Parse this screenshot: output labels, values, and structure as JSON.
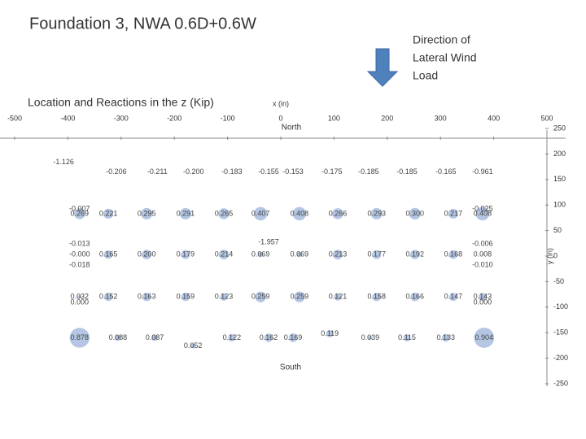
{
  "chart_data": {
    "type": "bubble",
    "title": "Foundation 3, NWA 0.6D+0.6W",
    "subtitle": "Location and Reactions in the z (Kip)",
    "annotations": {
      "wind": [
        "Direction of",
        "Lateral Wind",
        "Load"
      ],
      "north": "North",
      "south": "South"
    },
    "xlabel": "x (in)",
    "ylabel": "y (in)",
    "xlim": [
      -500,
      500
    ],
    "xticks": [
      -500,
      -400,
      -300,
      -200,
      -100,
      0,
      100,
      200,
      300,
      400,
      500
    ],
    "ylim": [
      -250,
      250
    ],
    "yticks": [
      -250,
      -200,
      -150,
      -100,
      -50,
      0,
      50,
      100,
      150,
      200,
      250
    ],
    "series": [
      {
        "name": "Reactions",
        "color": "#9bb3d9",
        "x": [
          -408,
          -309,
          -232,
          -164,
          -92,
          -23,
          23,
          96,
          165,
          237,
          310,
          379,
          -378,
          -324,
          -252,
          -179,
          -107,
          -38,
          35,
          107,
          180,
          252,
          324,
          379,
          -378,
          379,
          -378,
          -378,
          -378,
          -324,
          -252,
          -179,
          -107,
          -23,
          -38,
          35,
          107,
          180,
          252,
          324,
          379,
          379,
          379,
          -378,
          -378,
          -324,
          -252,
          -179,
          -107,
          -38,
          35,
          107,
          180,
          252,
          324,
          379,
          379,
          -378,
          -306,
          -237,
          -165,
          -92,
          -23,
          23,
          92,
          168,
          237,
          310,
          382
        ],
        "y": [
          184,
          165,
          165,
          165,
          165,
          165,
          165,
          165,
          165,
          165,
          165,
          165,
          83,
          83,
          83,
          83,
          83,
          83,
          83,
          83,
          83,
          83,
          83,
          83,
          92,
          92,
          24,
          3,
          -18,
          3,
          3,
          3,
          3,
          27,
          3,
          3,
          3,
          3,
          3,
          3,
          24,
          3,
          -18,
          -80,
          -91,
          -80,
          -80,
          -80,
          -80,
          -80,
          -80,
          -80,
          -80,
          -80,
          -80,
          -80,
          -91,
          -160,
          -160,
          -160,
          -176,
          -160,
          -160,
          -160,
          -152,
          -160,
          -160,
          -160,
          -160
        ],
        "values": [
          -1.126,
          -0.206,
          -0.211,
          -0.2,
          -0.183,
          -0.155,
          -0.153,
          -0.175,
          -0.185,
          -0.185,
          -0.165,
          -0.961,
          0.269,
          0.221,
          0.295,
          0.291,
          0.265,
          0.407,
          0.408,
          0.266,
          0.293,
          0.3,
          0.217,
          0.408,
          -0.007,
          -0.025,
          -0.013,
          0.0,
          -0.018,
          0.165,
          0.2,
          0.179,
          0.214,
          -1.957,
          0.069,
          0.069,
          0.213,
          0.177,
          0.192,
          0.168,
          -0.006,
          0.008,
          -0.01,
          0.032,
          0.0,
          0.152,
          0.163,
          0.159,
          0.123,
          0.259,
          0.259,
          0.121,
          0.158,
          0.166,
          0.147,
          0.143,
          0.0,
          0.878,
          0.088,
          0.087,
          0.052,
          0.122,
          0.162,
          0.169,
          0.119,
          0.039,
          0.115,
          0.133,
          0.904
        ],
        "value_labels": [
          "-1.126",
          "-0.206",
          "-0.211",
          "-0.200",
          "-0.183",
          "-0.155",
          "-0.153",
          "-0.175",
          "-0.185",
          "-0.185",
          "-0.165",
          "-0.961",
          "0.269",
          "0.221",
          "0.295",
          "0.291",
          "0.265",
          "0.407",
          "0.408",
          "0.266",
          "0.293",
          "0.300",
          "0.217",
          "0.408",
          "-0.007",
          "-0.025",
          "-0.013",
          "-0.000",
          "-0.018",
          "0.165",
          "0.200",
          "0.179",
          "0.214",
          "-1.957",
          "0.069",
          "0.069",
          "0.213",
          "0.177",
          "0.192",
          "0.168",
          "-0.006",
          "0.008",
          "-0.010",
          "0.032",
          "0.000",
          "0.152",
          "0.163",
          "0.159",
          "0.123",
          "0.259",
          "0.259",
          "0.121",
          "0.158",
          "0.166",
          "0.147",
          "0.143",
          "0.000",
          "0.878",
          "0.088",
          "0.087",
          "0.052",
          "0.122",
          "0.162",
          "0.169",
          "0.119",
          "0.039",
          "0.115",
          "0.133",
          "0.904"
        ]
      }
    ]
  }
}
